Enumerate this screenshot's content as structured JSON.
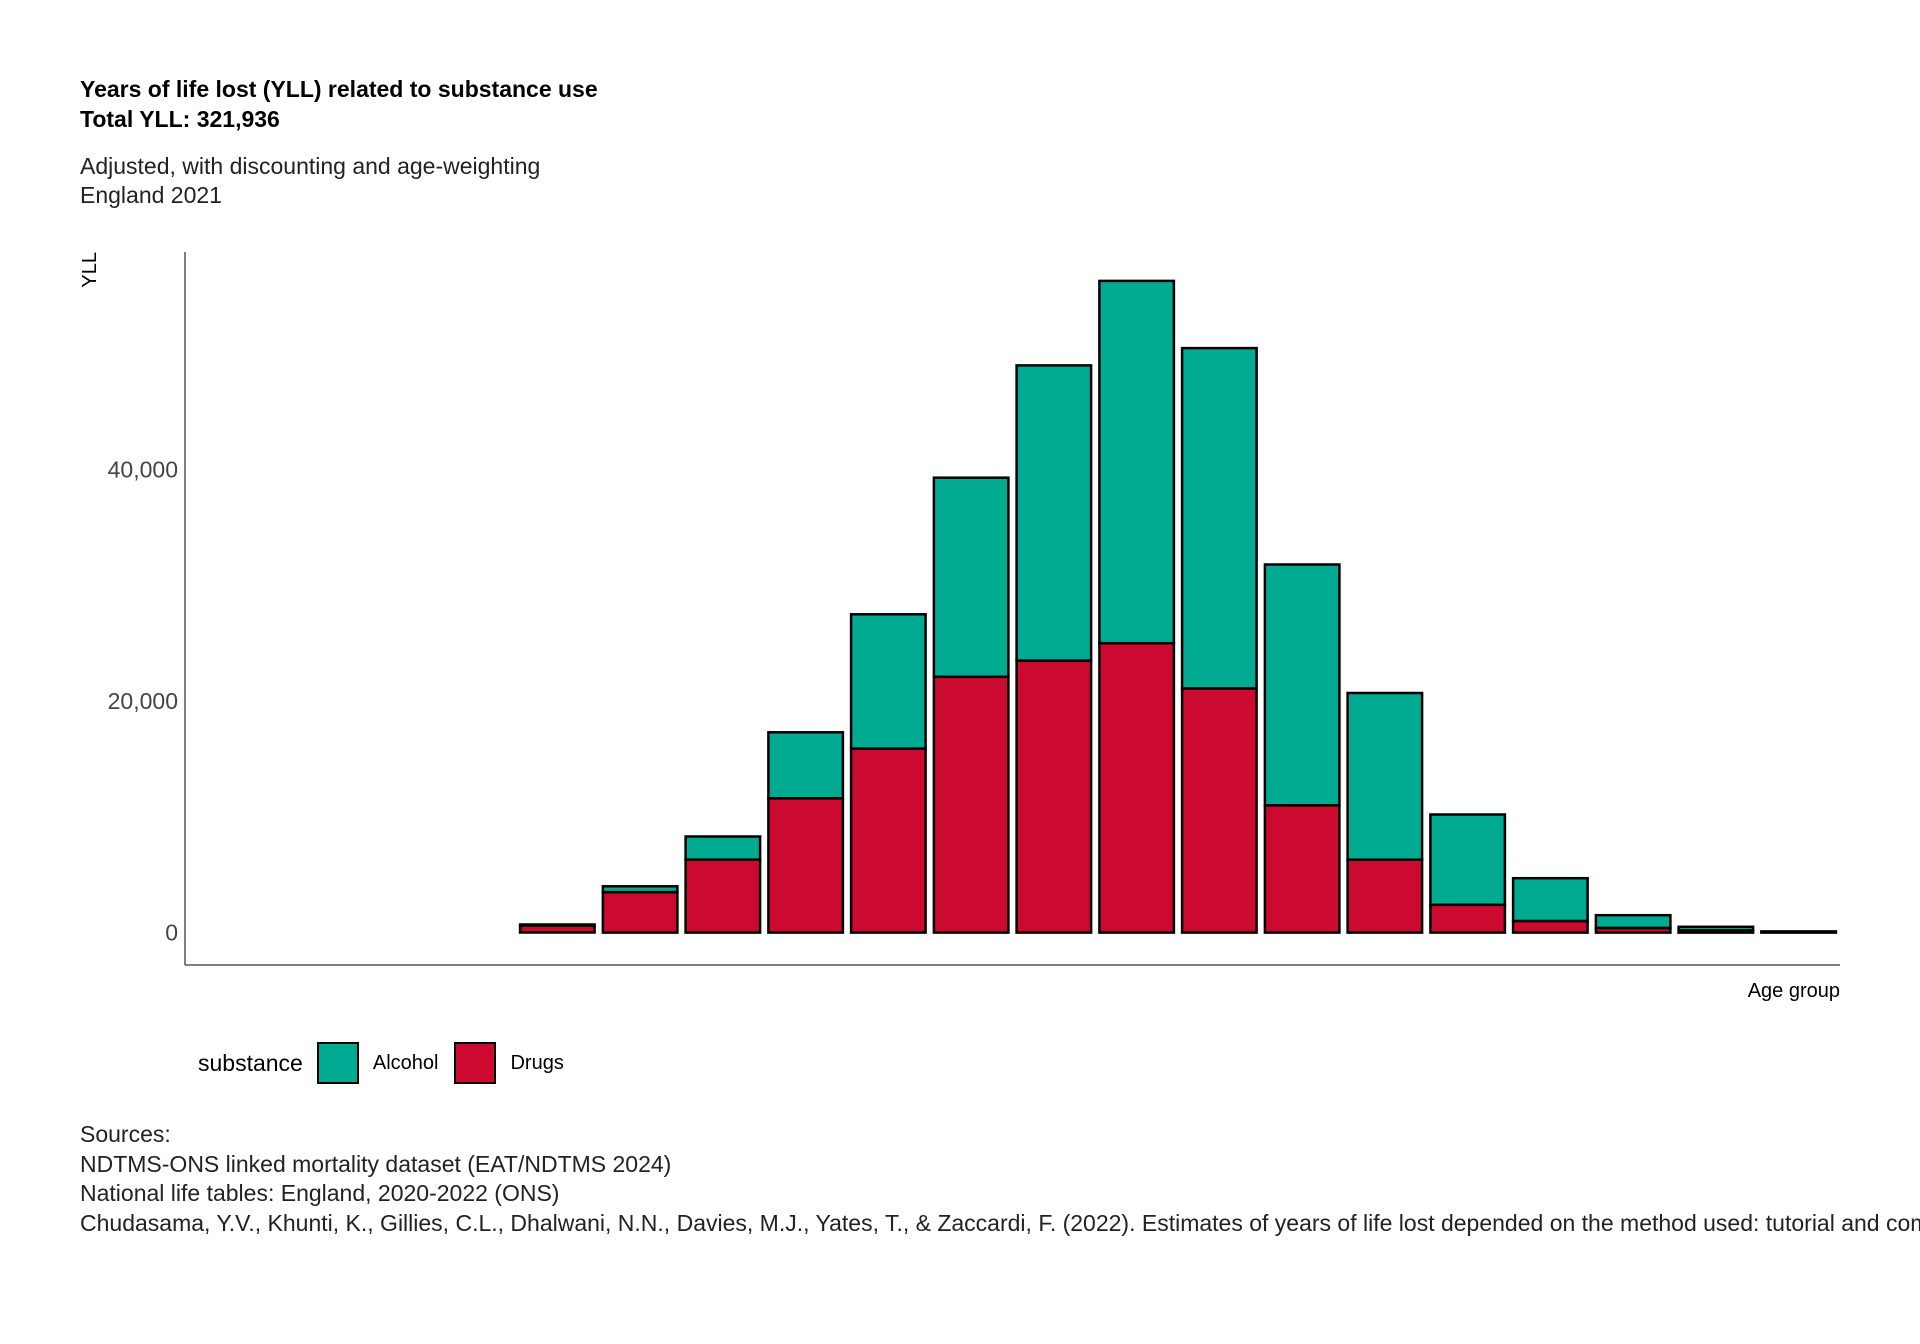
{
  "title_lines": [
    "Years of life lost (YLL) related to substance use",
    "Total YLL: 321,936"
  ],
  "subtitle_lines": [
    "Adjusted, with discounting and age-weighting",
    "England 2021"
  ],
  "legend": {
    "title": "substance",
    "items": [
      {
        "label": "Alcohol",
        "color": "#00ab91"
      },
      {
        "label": "Drugs",
        "color": "#cc0a30"
      }
    ]
  },
  "caption_lines": [
    "Sources:",
    "NDTMS-ONS linked mortality dataset (EAT/NDTMS 2024)",
    "National life tables: England, 2020-2022 (ONS)",
    "Chudasama, Y.V., Khunti, K., Gillies, C.L., Dhalwani, N.N., Davies, M.J., Yates, T., & Zaccardi, F. (2022). Estimates of years of life lost depended on the method used: tutorial and comp"
  ],
  "chart_data": {
    "type": "bar",
    "stacked": true,
    "xlabel": "Age group",
    "ylabel": "YLL",
    "ylim": [
      -2800,
      58800
    ],
    "yticks": [
      0,
      20000,
      40000
    ],
    "ytick_labels": [
      "0",
      "20,000",
      "40,000"
    ],
    "categories": [
      "",
      "",
      "",
      "",
      "",
      "",
      "",
      "",
      "",
      "",
      "",
      "",
      "",
      "",
      "",
      "",
      "",
      "",
      "",
      ""
    ],
    "series": [
      {
        "name": "Drugs",
        "color": "#cc0a30",
        "values": [
          0,
          0,
          0,
          0,
          600,
          3500,
          6300,
          11600,
          15900,
          22100,
          23500,
          25000,
          21100,
          11000,
          6300,
          2400,
          1000,
          400,
          200,
          50
        ]
      },
      {
        "name": "Alcohol",
        "color": "#00ab91",
        "values": [
          0,
          0,
          0,
          0,
          100,
          500,
          2000,
          5700,
          11600,
          17200,
          25500,
          31300,
          29400,
          20800,
          14400,
          7800,
          3700,
          1100,
          300,
          50
        ]
      }
    ]
  }
}
